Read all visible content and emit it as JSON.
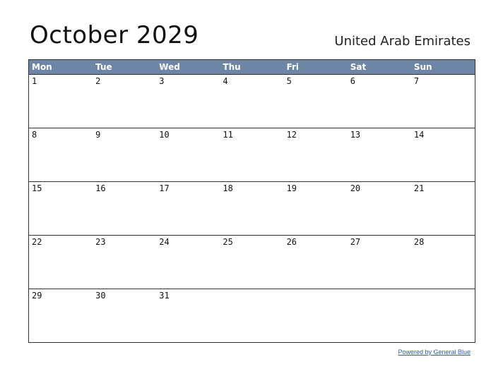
{
  "title": "October 2029",
  "country": "United Arab Emirates",
  "weekdays": [
    "Mon",
    "Tue",
    "Wed",
    "Thu",
    "Fri",
    "Sat",
    "Sun"
  ],
  "weeks": [
    [
      "1",
      "2",
      "3",
      "4",
      "5",
      "6",
      "7"
    ],
    [
      "8",
      "9",
      "10",
      "11",
      "12",
      "13",
      "14"
    ],
    [
      "15",
      "16",
      "17",
      "18",
      "19",
      "20",
      "21"
    ],
    [
      "22",
      "23",
      "24",
      "25",
      "26",
      "27",
      "28"
    ],
    [
      "29",
      "30",
      "31",
      "",
      "",
      "",
      ""
    ]
  ],
  "footer": "Powered by General Blue",
  "colors": {
    "header_bg": "#6e86a5",
    "link": "#2a5db0"
  }
}
